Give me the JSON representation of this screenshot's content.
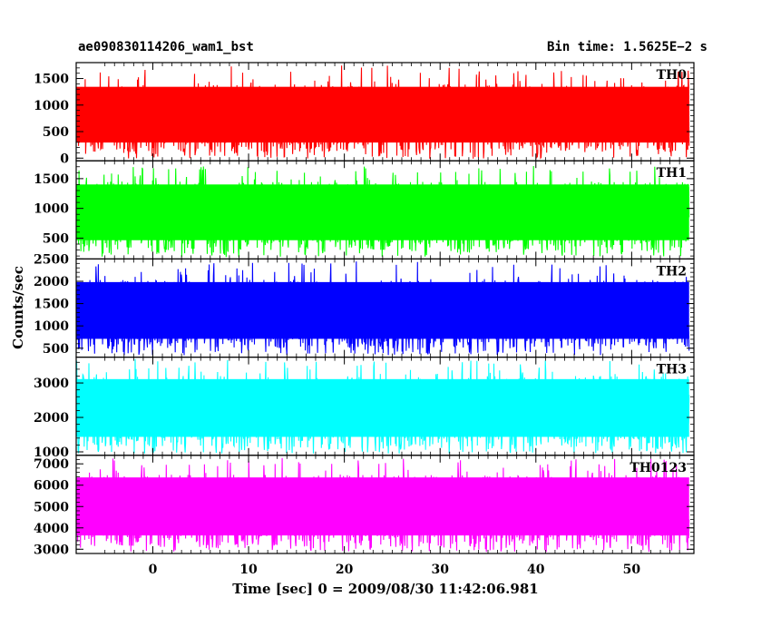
{
  "header": {
    "title": "ae090830114206_wam1_bst",
    "bin_time": "Bin time: 1.5625E−2 s"
  },
  "chart_data": {
    "type": "line",
    "xlabel": "Time [sec] 0 = 2009/08/30 11:42:06.981",
    "ylabel": "Counts/sec",
    "xlim": [
      -8,
      56.5
    ],
    "xticks": [
      0,
      10,
      20,
      30,
      40,
      50
    ],
    "x_data_range": [
      -8,
      56
    ],
    "panels": [
      {
        "name": "TH0",
        "color": "#ff0000",
        "ylim": [
          -50,
          1800
        ],
        "yticks": [
          0,
          500,
          1000,
          1500
        ],
        "mean": 700,
        "lower_envelope": 120,
        "upper_envelope": 1400,
        "peak": 1750
      },
      {
        "name": "TH1",
        "color": "#00ff00",
        "ylim": [
          150,
          1800
        ],
        "yticks": [
          500,
          1000,
          1500
        ],
        "mean": 850,
        "lower_envelope": 300,
        "upper_envelope": 1450,
        "peak": 1720
      },
      {
        "name": "TH2",
        "color": "#0000ff",
        "ylim": [
          300,
          2500
        ],
        "yticks": [
          500,
          1000,
          1500,
          2000,
          2500
        ],
        "mean": 1200,
        "lower_envelope": 500,
        "upper_envelope": 2050,
        "peak": 2450
      },
      {
        "name": "TH3",
        "color": "#00ffff",
        "ylim": [
          900,
          3750
        ],
        "yticks": [
          1000,
          2000,
          3000
        ],
        "mean": 2100,
        "lower_envelope": 1150,
        "upper_envelope": 3200,
        "peak": 3700
      },
      {
        "name": "TH0123",
        "color": "#ff00ff",
        "ylim": [
          2800,
          7400
        ],
        "yticks": [
          3000,
          4000,
          5000,
          6000,
          7000
        ],
        "mean": 4800,
        "lower_envelope": 3150,
        "upper_envelope": 6500,
        "peak": 7300
      }
    ]
  }
}
